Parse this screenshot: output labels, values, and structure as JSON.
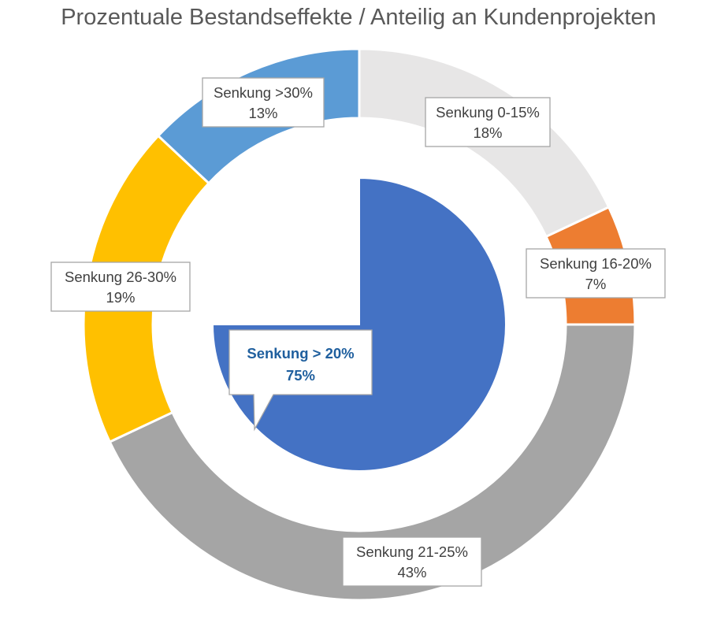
{
  "chart_data": {
    "type": "pie",
    "title": "Prozentuale Bestandseffekte / Anteilig an Kundenprojekten",
    "rings": [
      {
        "ring": "outer",
        "style": "doughnut",
        "slices": [
          {
            "label": "Senkung 0-15%",
            "value": 18,
            "display": "18%",
            "color": "#e7e6e6"
          },
          {
            "label": "Senkung 16-20%",
            "value": 7,
            "display": "7%",
            "color": "#ed7d31"
          },
          {
            "label": "Senkung 21-25%",
            "value": 43,
            "display": "43%",
            "color": "#a5a5a5"
          },
          {
            "label": "Senkung 26-30%",
            "value": 19,
            "display": "19%",
            "color": "#ffc000"
          },
          {
            "label": "Senkung >30%",
            "value": 13,
            "display": "13%",
            "color": "#5b9bd5"
          }
        ]
      },
      {
        "ring": "inner",
        "style": "pie",
        "slices": [
          {
            "label": "Senkung > 20%",
            "value": 75,
            "display": "75%",
            "color": "#4472c4",
            "callout": true
          }
        ]
      }
    ]
  }
}
